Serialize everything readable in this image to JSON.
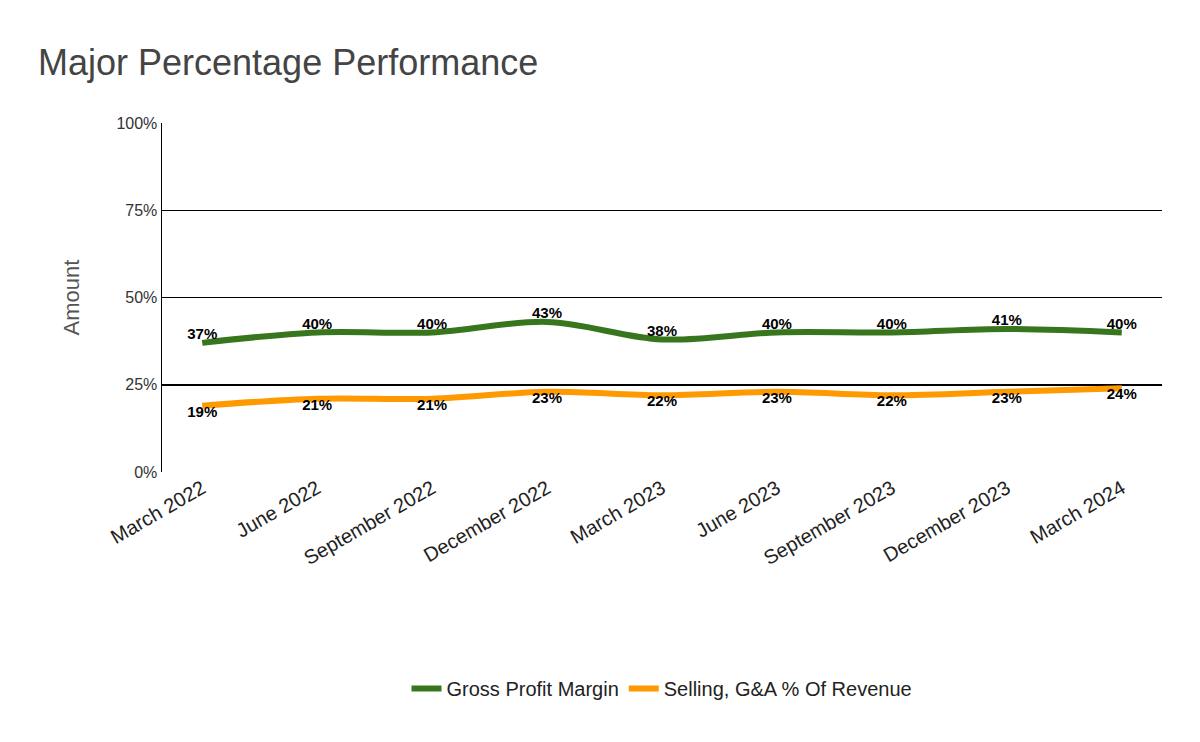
{
  "chart_data": {
    "type": "line",
    "title": "Major Percentage Performance",
    "y_label": "Amount",
    "categories": [
      "March 2022",
      "June 2022",
      "September 2022",
      "December 2022",
      "March 2023",
      "June 2023",
      "September 2023",
      "December 2023",
      "March 2024"
    ],
    "series": [
      {
        "name": "Gross Profit Margin",
        "color": "#38761d",
        "values": [
          37,
          40,
          40,
          43,
          38,
          40,
          40,
          41,
          40
        ],
        "value_labels": [
          "37%",
          "40%",
          "40%",
          "43%",
          "38%",
          "40%",
          "40%",
          "41%",
          "40%"
        ]
      },
      {
        "name": "Selling, G&A % Of Revenue",
        "color": "#ff9900",
        "values": [
          19,
          21,
          21,
          23,
          22,
          23,
          22,
          23,
          24
        ],
        "value_labels": [
          "19%",
          "21%",
          "21%",
          "23%",
          "22%",
          "23%",
          "22%",
          "23%",
          "24%"
        ]
      }
    ],
    "ylim": [
      0,
      100
    ],
    "yticks": [
      {
        "value": 0,
        "label": "0%"
      },
      {
        "value": 25,
        "label": "25%"
      },
      {
        "value": 50,
        "label": "50%"
      },
      {
        "value": 75,
        "label": "75%"
      },
      {
        "value": 100,
        "label": "100%"
      }
    ],
    "grid": true,
    "legend": "bottom",
    "data_labels": true
  }
}
